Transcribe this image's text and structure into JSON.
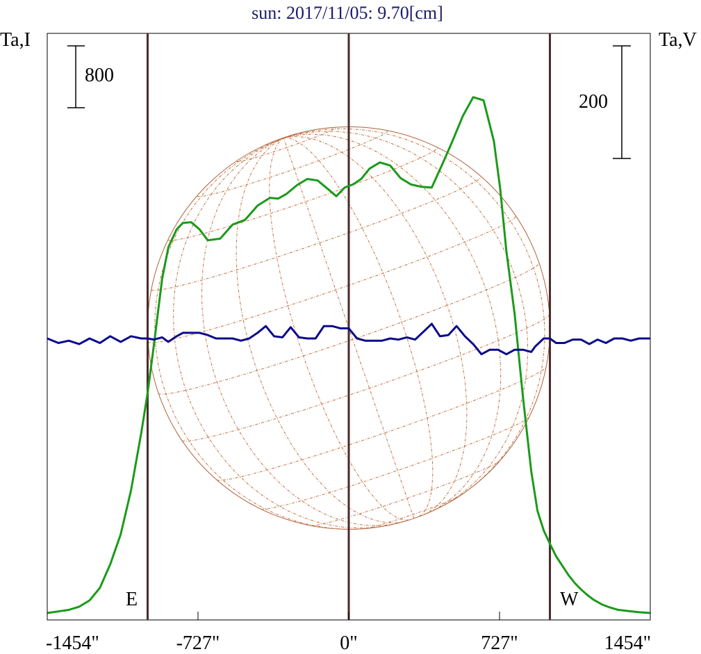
{
  "title": "sun: 2017/11/05: 9.70[cm]",
  "left_axis_label": "Ta,I",
  "right_axis_label": "Ta,V",
  "scale_bar_left": "800",
  "scale_bar_right": "200",
  "east_label": "E",
  "west_label": "W",
  "colors": {
    "stokes_i": "#1a9a1a",
    "stokes_v": "#0a0a8c",
    "limb_lines": "#4a2a2a",
    "disk": "#b0603a",
    "grid": "#c07040",
    "title": "#1a1a6e"
  },
  "chart_data": {
    "type": "line",
    "title": "sun: 2017/11/05: 9.70[cm]",
    "xlabel": "",
    "ylabel_left": "Ta,I",
    "ylabel_right": "Ta,V",
    "xlim": [
      -1454,
      1454
    ],
    "x_ticks": [
      -1454,
      -727,
      0,
      727,
      1454
    ],
    "x_tick_labels": [
      "-1454\"",
      "-727\"",
      "0\"",
      "727\"",
      "1454\""
    ],
    "limb_markers": [
      -970,
      0,
      970
    ],
    "disk_radius_arcsec": 970,
    "scale_bars": [
      {
        "axis": "left",
        "value": 800,
        "label": "800"
      },
      {
        "axis": "right",
        "value": 200,
        "label": "200"
      }
    ],
    "series": [
      {
        "axis": "left",
        "x": [
          -1454,
          -1400,
          -1350,
          -1300,
          -1250,
          -1200,
          -1150,
          -1100,
          -1050,
          -1000,
          -970,
          -940,
          -900,
          -870,
          -830,
          -800,
          -760,
          -720,
          -680,
          -620,
          -560,
          -500,
          -440,
          -380,
          -340,
          -300,
          -250,
          -200,
          -150,
          -100,
          -60,
          -20,
          20,
          60,
          100,
          150,
          200,
          250,
          300,
          350,
          400,
          450,
          500,
          550,
          600,
          650,
          700,
          730,
          760,
          800,
          840,
          880,
          910,
          940,
          970,
          1000,
          1030,
          1060,
          1090,
          1120,
          1150,
          1180,
          1220,
          1260,
          1300,
          1350,
          1400,
          1454
        ],
        "y": [
          0,
          20,
          40,
          80,
          160,
          320,
          620,
          1000,
          1560,
          2300,
          2800,
          3400,
          4250,
          4650,
          4880,
          4960,
          4970,
          4880,
          4740,
          4760,
          4940,
          5000,
          5180,
          5280,
          5270,
          5330,
          5440,
          5520,
          5500,
          5390,
          5300,
          5410,
          5450,
          5520,
          5650,
          5730,
          5690,
          5530,
          5450,
          5420,
          5410,
          5700,
          6000,
          6320,
          6560,
          6520,
          6000,
          5400,
          4600,
          3800,
          2750,
          1800,
          1300,
          1050,
          880,
          720,
          600,
          480,
          380,
          300,
          230,
          170,
          110,
          70,
          40,
          25,
          10,
          0
        ],
        "min": 0,
        "max": 7000
      },
      {
        "axis": "right",
        "x": [
          -1454,
          -1400,
          -1350,
          -1300,
          -1250,
          -1200,
          -1150,
          -1100,
          -1050,
          -1000,
          -970,
          -940,
          -900,
          -870,
          -830,
          -800,
          -760,
          -720,
          -680,
          -640,
          -600,
          -560,
          -520,
          -480,
          -440,
          -400,
          -360,
          -320,
          -280,
          -240,
          -200,
          -160,
          -120,
          -80,
          -40,
          0,
          40,
          80,
          120,
          160,
          200,
          240,
          280,
          320,
          360,
          400,
          440,
          480,
          520,
          560,
          600,
          640,
          680,
          720,
          760,
          800,
          840,
          880,
          900,
          940,
          970,
          1000,
          1040,
          1080,
          1120,
          1160,
          1200,
          1240,
          1280,
          1320,
          1360,
          1400,
          1454
        ],
        "y": [
          0,
          -8,
          -4,
          -10,
          0,
          -8,
          4,
          -6,
          4,
          0,
          0,
          -2,
          2,
          -6,
          4,
          10,
          10,
          10,
          6,
          0,
          0,
          0,
          -4,
          0,
          10,
          22,
          4,
          2,
          20,
          2,
          0,
          0,
          22,
          22,
          18,
          18,
          0,
          -4,
          -4,
          -4,
          0,
          -2,
          2,
          -2,
          12,
          26,
          4,
          6,
          22,
          4,
          -10,
          -28,
          -20,
          -20,
          -28,
          -20,
          -20,
          -24,
          -14,
          0,
          0,
          -8,
          -8,
          -2,
          -2,
          -10,
          -2,
          -8,
          0,
          0,
          -4,
          0,
          0
        ],
        "min": -150,
        "max": 150
      }
    ]
  }
}
